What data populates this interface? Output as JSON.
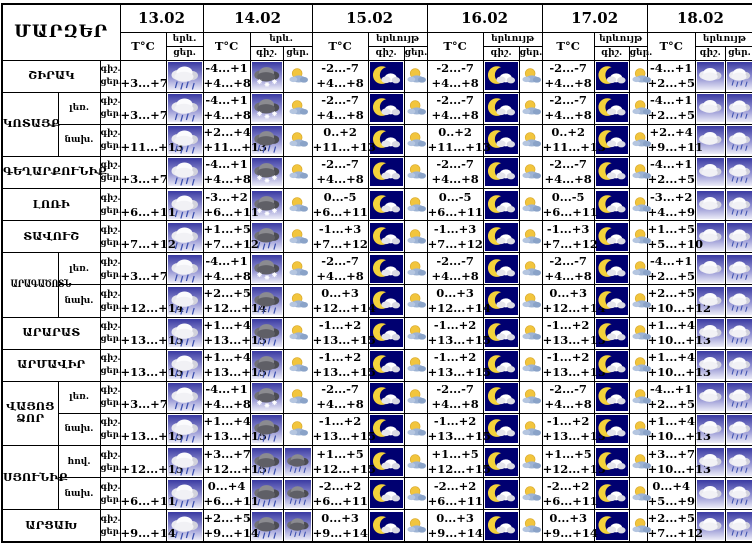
{
  "title": "ՄԱՐԶԵՐ",
  "header": {
    "temp": "T°C",
    "night": "գիշ.",
    "day": "ցեր."
  },
  "colors": {
    "grid": "#000000",
    "tile_blue_top": "#3a3aa2",
    "tile_blue_bottom": "#ececf8",
    "tile_navy": "#000070",
    "moon_yellow": "#f3d23b",
    "sun_yellow": "#f2c53d"
  },
  "dates": [
    {
      "label": "13.02",
      "phenomenon": "երև.",
      "columns": [
        "day"
      ]
    },
    {
      "label": "14.02",
      "phenomenon": "երև.",
      "columns": [
        "night",
        "day"
      ]
    },
    {
      "label": "15.02",
      "phenomenon": "երևույթ",
      "columns": [
        "night",
        "day"
      ]
    },
    {
      "label": "16.02",
      "phenomenon": "երևույթ",
      "columns": [
        "night",
        "day"
      ]
    },
    {
      "label": "17.02",
      "phenomenon": "երևույթ",
      "columns": [
        "night",
        "day"
      ]
    },
    {
      "label": "18.02",
      "phenomenon": "երևույթ",
      "columns": [
        "night",
        "day"
      ]
    }
  ],
  "regions": [
    {
      "name": "ՇԻՐԱԿ",
      "rows": [
        {
          "sub": "",
          "cells": [
            {
              "night": "",
              "day": "+3...+7",
              "icons": [
                "rain"
              ]
            },
            {
              "night": "-4...+1",
              "day": "+4...+8",
              "icons": [
                "snow",
                "sun-cloud"
              ]
            },
            {
              "night": "-2...-7",
              "day": "+4...+8",
              "icons": [
                "moon-cloud",
                "sun-cloud"
              ]
            },
            {
              "night": "-2...-7",
              "day": "+4...+8",
              "icons": [
                "moon-cloud",
                "sun-cloud"
              ]
            },
            {
              "night": "-2...-7",
              "day": "+4...+8",
              "icons": [
                "moon-cloud",
                "sun-cloud"
              ]
            },
            {
              "night": "-4...+1",
              "day": "+2...+5",
              "icons": [
                "cloud",
                "rain"
              ]
            }
          ]
        }
      ]
    },
    {
      "name": "ԿՈՏԱՅՔ",
      "rows": [
        {
          "sub": "լեռ.",
          "cells": [
            {
              "night": "",
              "day": "+3...+7",
              "icons": [
                "rain"
              ]
            },
            {
              "night": "-4...+1",
              "day": "+4...+8",
              "icons": [
                "snow",
                "sun-cloud"
              ]
            },
            {
              "night": "-2...-7",
              "day": "+4...+8",
              "icons": [
                "moon-cloud",
                "sun-cloud"
              ]
            },
            {
              "night": "-2...-7",
              "day": "+4...+8",
              "icons": [
                "moon-cloud",
                "sun-cloud"
              ]
            },
            {
              "night": "-2...-7",
              "day": "+4...+8",
              "icons": [
                "moon-cloud",
                "sun-cloud"
              ]
            },
            {
              "night": "-4...+1",
              "day": "+2...+5",
              "icons": [
                "cloud",
                "rain"
              ]
            }
          ]
        },
        {
          "sub": "նախ.",
          "cells": [
            {
              "night": "",
              "day": "+11...+13",
              "icons": [
                "rain"
              ]
            },
            {
              "night": "+2...+4",
              "day": "+11...+13",
              "icons": [
                "rain-dark",
                "sun-cloud"
              ]
            },
            {
              "night": "0..+2",
              "day": "+11...+13",
              "icons": [
                "moon-cloud",
                "sun-cloud"
              ]
            },
            {
              "night": "0..+2",
              "day": "+11...+13",
              "icons": [
                "moon-cloud",
                "sun-cloud"
              ]
            },
            {
              "night": "0..+2",
              "day": "+11...+13",
              "icons": [
                "moon-cloud",
                "sun-cloud"
              ]
            },
            {
              "night": "+2..+4",
              "day": "+9...+11",
              "icons": [
                "cloud",
                "rain"
              ]
            }
          ]
        }
      ]
    },
    {
      "name": "ԳԵՂԱՐՔՈՒՆԻՔ",
      "rows": [
        {
          "sub": "",
          "cells": [
            {
              "night": "",
              "day": "+3...+7",
              "icons": [
                "rain"
              ]
            },
            {
              "night": "-4...+1",
              "day": "+4...+8",
              "icons": [
                "snow",
                "sun-cloud"
              ]
            },
            {
              "night": "-2...-7",
              "day": "+4...+8",
              "icons": [
                "moon-cloud",
                "sun-cloud"
              ]
            },
            {
              "night": "-2...-7",
              "day": "+4...+8",
              "icons": [
                "moon-cloud",
                "sun-cloud"
              ]
            },
            {
              "night": "-2...-7",
              "day": "+4...+8",
              "icons": [
                "moon-cloud",
                "sun-cloud"
              ]
            },
            {
              "night": "-4...+1",
              "day": "+2...+5",
              "icons": [
                "cloud",
                "rain"
              ]
            }
          ]
        }
      ]
    },
    {
      "name": "ԼՈՌԻ",
      "rows": [
        {
          "sub": "",
          "cells": [
            {
              "night": "",
              "day": "+6...+11",
              "icons": [
                "rain"
              ]
            },
            {
              "night": "-3...+2",
              "day": "+6...+11",
              "icons": [
                "snow",
                "sun-cloud"
              ]
            },
            {
              "night": "0...-5",
              "day": "+6...+11",
              "icons": [
                "moon-cloud",
                "sun-cloud"
              ]
            },
            {
              "night": "0...-5",
              "day": "+6...+11",
              "icons": [
                "moon-cloud",
                "sun-cloud"
              ]
            },
            {
              "night": "0...-5",
              "day": "+6...+11",
              "icons": [
                "moon-cloud",
                "sun-cloud"
              ]
            },
            {
              "night": "-3...+2",
              "day": "+4...+9",
              "icons": [
                "cloud",
                "rain"
              ]
            }
          ]
        }
      ]
    },
    {
      "name": "ՏԱՎՈՒՇ",
      "rows": [
        {
          "sub": "",
          "cells": [
            {
              "night": "",
              "day": "+7...+12",
              "icons": [
                "rain"
              ]
            },
            {
              "night": "+1...+5",
              "day": "+7...+12",
              "icons": [
                "rain-dark",
                "sun-cloud"
              ]
            },
            {
              "night": "-1...+3",
              "day": "+7...+12",
              "icons": [
                "moon-cloud",
                "sun-cloud"
              ]
            },
            {
              "night": "-1...+3",
              "day": "+7...+12",
              "icons": [
                "moon-cloud",
                "sun-cloud"
              ]
            },
            {
              "night": "-1...+3",
              "day": "+7...+12",
              "icons": [
                "moon-cloud",
                "sun-cloud"
              ]
            },
            {
              "night": "+1...+5",
              "day": "+5...+10",
              "icons": [
                "cloud",
                "rain"
              ]
            }
          ]
        }
      ]
    },
    {
      "name": "ԱՐԱԳԱԾՈՏՆ",
      "rows": [
        {
          "sub": "լեռ.",
          "cells": [
            {
              "night": "",
              "day": "+3...+7",
              "icons": [
                "rain"
              ]
            },
            {
              "night": "-4...+1",
              "day": "+4...+8",
              "icons": [
                "snow",
                "sun-cloud"
              ]
            },
            {
              "night": "-2...-7",
              "day": "+4...+8",
              "icons": [
                "moon-cloud",
                "sun-cloud"
              ]
            },
            {
              "night": "-2...-7",
              "day": "+4...+8",
              "icons": [
                "moon-cloud",
                "sun-cloud"
              ]
            },
            {
              "night": "-2...-7",
              "day": "+4...+8",
              "icons": [
                "moon-cloud",
                "sun-cloud"
              ]
            },
            {
              "night": "-4...+1",
              "day": "+2...+5",
              "icons": [
                "cloud",
                "rain"
              ]
            }
          ]
        },
        {
          "sub": "նախ.",
          "cells": [
            {
              "night": "",
              "day": "+12...+14",
              "icons": [
                "rain"
              ]
            },
            {
              "night": "+2...+5",
              "day": "+12...+14",
              "icons": [
                "rain-dark",
                "sun-cloud"
              ]
            },
            {
              "night": "0...+3",
              "day": "+12...+14",
              "icons": [
                "moon-cloud",
                "sun-cloud"
              ]
            },
            {
              "night": "0...+3",
              "day": "+12...+14",
              "icons": [
                "moon-cloud",
                "sun-cloud"
              ]
            },
            {
              "night": "0...+3",
              "day": "+12...+14",
              "icons": [
                "moon-cloud",
                "sun-cloud"
              ]
            },
            {
              "night": "+2...+5",
              "day": "+10...+12",
              "icons": [
                "cloud",
                "rain"
              ]
            }
          ]
        }
      ]
    },
    {
      "name": "ԱՐԱՐԱՏ",
      "rows": [
        {
          "sub": "",
          "cells": [
            {
              "night": "",
              "day": "+13...+15",
              "icons": [
                "rain"
              ]
            },
            {
              "night": "+1...+4",
              "day": "+13...+15",
              "icons": [
                "rain-dark",
                "sun-cloud"
              ]
            },
            {
              "night": "-1...+2",
              "day": "+13...+15",
              "icons": [
                "moon-cloud",
                "sun-cloud"
              ]
            },
            {
              "night": "-1...+2",
              "day": "+13...+15",
              "icons": [
                "moon-cloud",
                "sun-cloud"
              ]
            },
            {
              "night": "-1...+2",
              "day": "+13...+15",
              "icons": [
                "moon-cloud",
                "sun-cloud"
              ]
            },
            {
              "night": "+1...+4",
              "day": "+10...+13",
              "icons": [
                "cloud",
                "rain"
              ]
            }
          ]
        }
      ]
    },
    {
      "name": "ԱՐՄԱՎԻՐ",
      "rows": [
        {
          "sub": "",
          "cells": [
            {
              "night": "",
              "day": "+13...+15",
              "icons": [
                "rain"
              ]
            },
            {
              "night": "+1...+4",
              "day": "+13...+15",
              "icons": [
                "rain-dark",
                "sun-cloud"
              ]
            },
            {
              "night": "-1...+2",
              "day": "+13...+15",
              "icons": [
                "moon-cloud",
                "sun-cloud"
              ]
            },
            {
              "night": "-1...+2",
              "day": "+13...+15",
              "icons": [
                "moon-cloud",
                "sun-cloud"
              ]
            },
            {
              "night": "-1...+2",
              "day": "+13...+15",
              "icons": [
                "moon-cloud",
                "sun-cloud"
              ]
            },
            {
              "night": "+1...+4",
              "day": "+10...+13",
              "icons": [
                "cloud",
                "rain"
              ]
            }
          ]
        }
      ]
    },
    {
      "name": "ՎԱՅՈՑ ՁՈՐ",
      "rows": [
        {
          "sub": "լեռ.",
          "cells": [
            {
              "night": "",
              "day": "+3...+7",
              "icons": [
                "rain"
              ]
            },
            {
              "night": "-4...+1",
              "day": "+4...+8",
              "icons": [
                "snow",
                "sun-cloud"
              ]
            },
            {
              "night": "-2...-7",
              "day": "+4...+8",
              "icons": [
                "moon-cloud",
                "sun-cloud"
              ]
            },
            {
              "night": "-2...-7",
              "day": "+4...+8",
              "icons": [
                "moon-cloud",
                "sun-cloud"
              ]
            },
            {
              "night": "-2...-7",
              "day": "+4...+8",
              "icons": [
                "moon-cloud",
                "sun-cloud"
              ]
            },
            {
              "night": "-4...+1",
              "day": "+2...+5",
              "icons": [
                "cloud",
                "rain"
              ]
            }
          ]
        },
        {
          "sub": "նախ.",
          "cells": [
            {
              "night": "",
              "day": "+13...+15",
              "icons": [
                "rain"
              ]
            },
            {
              "night": "+1...+4",
              "day": "+13...+15",
              "icons": [
                "rain-dark",
                "sun-cloud"
              ]
            },
            {
              "night": "-1...+2",
              "day": "+13...+15",
              "icons": [
                "moon-cloud",
                "sun-cloud"
              ]
            },
            {
              "night": "-1...+2",
              "day": "+13...+15",
              "icons": [
                "moon-cloud",
                "sun-cloud"
              ]
            },
            {
              "night": "-1...+2",
              "day": "+13...+15",
              "icons": [
                "moon-cloud",
                "sun-cloud"
              ]
            },
            {
              "night": "+1...+4",
              "day": "+10...+13",
              "icons": [
                "cloud",
                "rain"
              ]
            }
          ]
        }
      ]
    },
    {
      "name": "ՍՅՈՒՆԻՔ",
      "rows": [
        {
          "sub": "հով.",
          "cells": [
            {
              "night": "",
              "day": "+12...+15",
              "icons": [
                "rain"
              ]
            },
            {
              "night": "+3...+7",
              "day": "+12...+15",
              "icons": [
                "rain-dark",
                "rain-dark"
              ]
            },
            {
              "night": "+1...+5",
              "day": "+12...+15",
              "icons": [
                "moon-cloud",
                "sun-cloud"
              ]
            },
            {
              "night": "+1...+5",
              "day": "+12...+15",
              "icons": [
                "moon-cloud",
                "sun-cloud"
              ]
            },
            {
              "night": "+1...+5",
              "day": "+12...+15",
              "icons": [
                "moon-cloud",
                "sun-cloud"
              ]
            },
            {
              "night": "+3...+7",
              "day": "+10...+13",
              "icons": [
                "cloud",
                "rain"
              ]
            }
          ]
        },
        {
          "sub": "նախ.",
          "cells": [
            {
              "night": "",
              "day": "+6...+11",
              "icons": [
                "rain"
              ]
            },
            {
              "night": "0...+4",
              "day": "+6...+11",
              "icons": [
                "rain-dark",
                "rain-dark"
              ]
            },
            {
              "night": "-2...+2",
              "day": "+6...+11",
              "icons": [
                "moon-cloud",
                "sun-cloud"
              ]
            },
            {
              "night": "-2...+2",
              "day": "+6...+11",
              "icons": [
                "moon-cloud",
                "sun-cloud"
              ]
            },
            {
              "night": "-2...+2",
              "day": "+6...+11",
              "icons": [
                "moon-cloud",
                "sun-cloud"
              ]
            },
            {
              "night": "0...+4",
              "day": "+5...+9",
              "icons": [
                "cloud",
                "rain"
              ]
            }
          ]
        }
      ]
    },
    {
      "name": "ԱՐՑԱԽ",
      "rows": [
        {
          "sub": "",
          "cells": [
            {
              "night": "",
              "day": "+9...+14",
              "icons": [
                "rain"
              ]
            },
            {
              "night": "+2...+5",
              "day": "+9...+14",
              "icons": [
                "rain-dark",
                "rain-dark"
              ]
            },
            {
              "night": "0...+3",
              "day": "+9...+14",
              "icons": [
                "moon-cloud",
                "sun-cloud"
              ]
            },
            {
              "night": "0...+3",
              "day": "+9...+14",
              "icons": [
                "moon-cloud",
                "sun-cloud"
              ]
            },
            {
              "night": "0...+3",
              "day": "+9...+14",
              "icons": [
                "moon-cloud",
                "sun-cloud"
              ]
            },
            {
              "night": "+2...+5",
              "day": "+7...+12",
              "icons": [
                "cloud",
                "rain"
              ]
            }
          ]
        }
      ]
    }
  ]
}
